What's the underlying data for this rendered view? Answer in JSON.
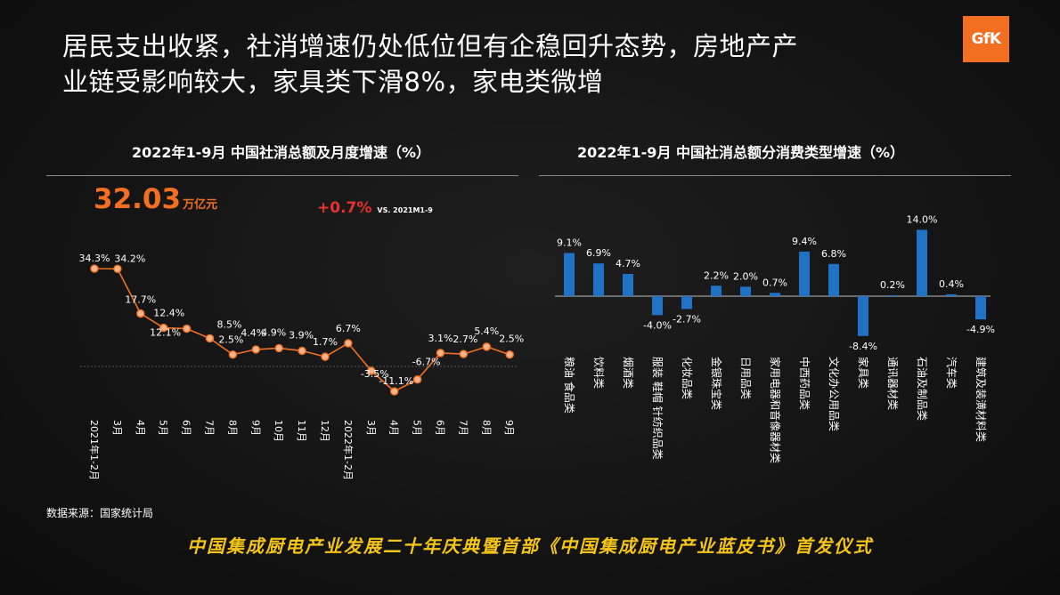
{
  "title": {
    "line1": "居民支出收紧，社消增速仍处低位但有企稳回升态势，房地产产",
    "line2": "业链受影响较大，家具类下滑8%，家电类微增"
  },
  "logo": {
    "text": "GfK"
  },
  "kpi": {
    "value": "32.03",
    "unit": "万亿元",
    "change": "+0.7%",
    "change_note": "VS. 2021M1-9"
  },
  "source": "数据来源：国家统计局",
  "banner": "中国集成厨电产业发展二十年庆典暨首部《中国集成厨电产业蓝皮书》首发仪式",
  "colors": {
    "line": "#f26f21",
    "marker_fill": "#f5b48a",
    "bar": "#1f72c4",
    "accent": "#f26f21",
    "banner": "#f5c518"
  },
  "chart_data": [
    {
      "type": "line",
      "title": "2022年1-9月  中国社消总额及月度增速（%）",
      "categories": [
        "2021年1-2月",
        "3月",
        "4月",
        "5月",
        "6月",
        "7月",
        "8月",
        "9月",
        "10月",
        "11月",
        "12月",
        "2022年1-2月",
        "3月",
        "4月",
        "5月",
        "6月",
        "7月",
        "8月",
        "9月"
      ],
      "values": [
        34.3,
        34.2,
        17.7,
        12.4,
        12.1,
        8.5,
        2.5,
        4.4,
        4.9,
        3.9,
        1.7,
        6.7,
        -3.5,
        -11.1,
        -6.7,
        3.1,
        2.7,
        5.4,
        2.5
      ],
      "labels": [
        "34.3%",
        "34.2%",
        "17.7%",
        "12.4%",
        "12.1%",
        "8.5%",
        "2.5%",
        "4.4%",
        "4.9%",
        "3.9%",
        "1.7%",
        "6.7%",
        "-3.5%",
        "-11.1%",
        "-6.7%",
        "3.1%",
        "2.7%",
        "5.4%",
        "2.5%"
      ],
      "ylim": [
        -15,
        40
      ],
      "grid": false,
      "legend": "none"
    },
    {
      "type": "bar",
      "title": "2022年1-9月  中国社消总额分消费类型增速（%）",
      "categories": [
        "粮油 食品类",
        "饮料类",
        "烟酒类",
        "服装 鞋帽 针纺织品类",
        "化妆品类",
        "金银珠宝类",
        "日用品类",
        "家用电器和音像器材类",
        "中西药品类",
        "文化办公用品类",
        "家具类",
        "通讯器材类",
        "石油及制品类",
        "汽车类",
        "建筑及装潢材料类"
      ],
      "values": [
        9.1,
        6.9,
        4.7,
        -4.0,
        -2.7,
        2.2,
        2.0,
        0.7,
        9.4,
        6.8,
        -8.4,
        0.2,
        14.0,
        0.4,
        -4.9
      ],
      "labels": [
        "9.1%",
        "6.9%",
        "4.7%",
        "-4.0%",
        "-2.7%",
        "2.2%",
        "2.0%",
        "0.7%",
        "9.4%",
        "6.8%",
        "-8.4%",
        "0.2%",
        "14.0%",
        "0.4%",
        "-4.9%"
      ],
      "ylim": [
        -10,
        16
      ],
      "grid": false,
      "legend": "none"
    }
  ]
}
